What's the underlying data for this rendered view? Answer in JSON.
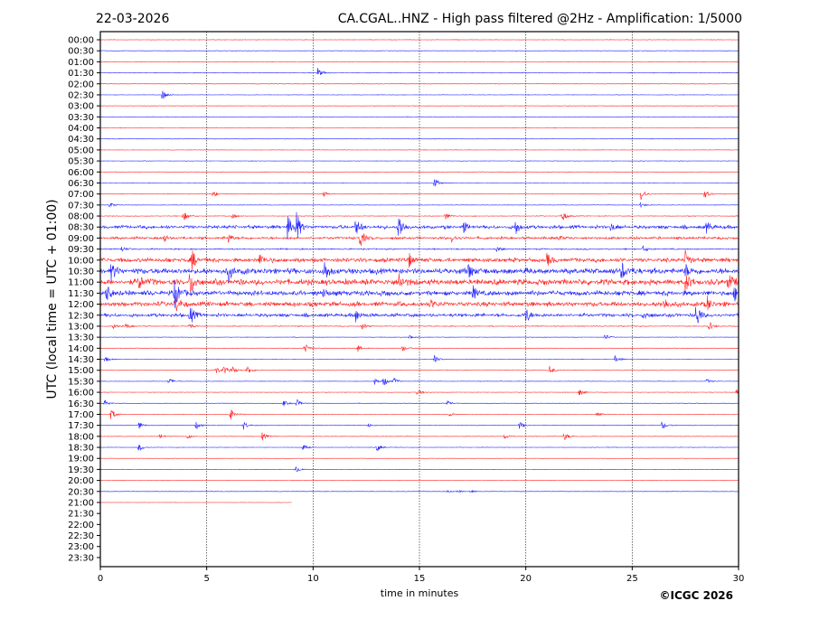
{
  "header": {
    "date": "22-03-2026",
    "title": "CA.CGAL..HNZ - High pass filtered @2Hz - Amplification: 1/5000"
  },
  "footer": {
    "copyright": "©ICGC 2026"
  },
  "chart_data": {
    "type": "line",
    "xlabel": "time in minutes",
    "ylabel": "UTC (local time = UTC + 01:00)",
    "xlim": [
      0,
      30
    ],
    "xticks": [
      "0",
      "5",
      "10",
      "15",
      "20",
      "25",
      "30"
    ],
    "grid": "vertical dotted every 5 minutes",
    "colors": {
      "hour": "#ff0000",
      "half_hour": "#0000ff"
    },
    "data_end": {
      "row": "21:00",
      "minute": 9
    },
    "rows": [
      {
        "label": "00:00",
        "noise": 0.3,
        "events": []
      },
      {
        "label": "00:30",
        "noise": 0.3,
        "events": []
      },
      {
        "label": "01:00",
        "noise": 0.3,
        "events": []
      },
      {
        "label": "01:30",
        "noise": 0.4,
        "events": [
          [
            10.2,
            6
          ]
        ]
      },
      {
        "label": "02:00",
        "noise": 0.3,
        "events": []
      },
      {
        "label": "02:30",
        "noise": 0.3,
        "events": [
          [
            2.9,
            6
          ]
        ]
      },
      {
        "label": "03:00",
        "noise": 0.3,
        "events": []
      },
      {
        "label": "03:30",
        "noise": 0.3,
        "events": []
      },
      {
        "label": "04:00",
        "noise": 0.3,
        "events": []
      },
      {
        "label": "04:30",
        "noise": 0.3,
        "events": []
      },
      {
        "label": "05:00",
        "noise": 0.3,
        "events": []
      },
      {
        "label": "05:30",
        "noise": 0.3,
        "events": []
      },
      {
        "label": "06:00",
        "noise": 0.3,
        "events": []
      },
      {
        "label": "06:30",
        "noise": 0.3,
        "events": [
          [
            15.7,
            6
          ]
        ]
      },
      {
        "label": "07:00",
        "noise": 0.3,
        "events": [
          [
            5.3,
            4
          ],
          [
            10.5,
            3
          ],
          [
            25.4,
            8
          ],
          [
            28.4,
            5
          ]
        ]
      },
      {
        "label": "07:30",
        "noise": 0.3,
        "events": [
          [
            0.4,
            4
          ],
          [
            25.4,
            3
          ]
        ]
      },
      {
        "label": "08:00",
        "noise": 0.4,
        "events": [
          [
            3.9,
            6
          ],
          [
            6.2,
            3
          ],
          [
            16.2,
            5
          ],
          [
            21.7,
            7
          ]
        ]
      },
      {
        "label": "08:30",
        "noise": 2,
        "events": [
          [
            8.8,
            14
          ],
          [
            9.2,
            18
          ],
          [
            12,
            10
          ],
          [
            14,
            18
          ],
          [
            17,
            8
          ],
          [
            19.5,
            10
          ],
          [
            28.5,
            7
          ],
          [
            24,
            5
          ]
        ]
      },
      {
        "label": "09:00",
        "noise": 1.5,
        "events": [
          [
            3,
            4
          ],
          [
            6,
            6
          ],
          [
            12.2,
            12
          ],
          [
            16.5,
            5
          ],
          [
            21.5,
            4
          ]
        ]
      },
      {
        "label": "09:30",
        "noise": 0.8,
        "events": [
          [
            1,
            3
          ],
          [
            18.6,
            4
          ],
          [
            25.5,
            4
          ]
        ]
      },
      {
        "label": "10:00",
        "noise": 2.5,
        "events": [
          [
            4.3,
            12
          ],
          [
            7.5,
            8
          ],
          [
            14.5,
            8
          ],
          [
            21,
            8
          ],
          [
            27.5,
            10
          ]
        ]
      },
      {
        "label": "10:30",
        "noise": 3.5,
        "events": [
          [
            0.5,
            10
          ],
          [
            6,
            12
          ],
          [
            10.5,
            14
          ],
          [
            17.3,
            10
          ],
          [
            24.5,
            12
          ],
          [
            27.5,
            8
          ]
        ]
      },
      {
        "label": "11:00",
        "noise": 3.5,
        "events": [
          [
            1.8,
            10
          ],
          [
            4.2,
            16
          ],
          [
            14,
            14
          ],
          [
            27.5,
            12
          ],
          [
            29.5,
            10
          ]
        ]
      },
      {
        "label": "11:30",
        "noise": 3,
        "events": [
          [
            0.3,
            10
          ],
          [
            3.5,
            18
          ],
          [
            10.5,
            6
          ],
          [
            17.5,
            8
          ],
          [
            29.8,
            8
          ]
        ]
      },
      {
        "label": "12:00",
        "noise": 2.8,
        "events": [
          [
            3.5,
            12
          ],
          [
            15.5,
            6
          ],
          [
            26.5,
            8
          ],
          [
            28.5,
            10
          ]
        ]
      },
      {
        "label": "12:30",
        "noise": 2,
        "events": [
          [
            4.2,
            12
          ],
          [
            12,
            8
          ],
          [
            20,
            10
          ],
          [
            25.5,
            6
          ],
          [
            28,
            16
          ]
        ]
      },
      {
        "label": "13:00",
        "noise": 0.5,
        "events": [
          [
            0.6,
            3
          ],
          [
            1.2,
            3
          ],
          [
            4.2,
            4
          ],
          [
            12.3,
            4
          ],
          [
            28.6,
            6
          ]
        ]
      },
      {
        "label": "13:30",
        "noise": 0.3,
        "events": [
          [
            14.5,
            3
          ],
          [
            23.7,
            4
          ]
        ]
      },
      {
        "label": "14:00",
        "noise": 0.3,
        "events": [
          [
            9.6,
            6
          ],
          [
            12.1,
            4
          ],
          [
            14.2,
            4
          ]
        ]
      },
      {
        "label": "14:30",
        "noise": 0.3,
        "events": [
          [
            0.2,
            4
          ],
          [
            15.7,
            4
          ],
          [
            24.2,
            4
          ]
        ]
      },
      {
        "label": "15:00",
        "noise": 0.3,
        "events": [
          [
            5.4,
            5
          ],
          [
            5.8,
            5
          ],
          [
            6.2,
            4
          ],
          [
            6.9,
            4
          ],
          [
            21.1,
            6
          ]
        ]
      },
      {
        "label": "15:30",
        "noise": 0.3,
        "events": [
          [
            3.2,
            4
          ],
          [
            12.9,
            4
          ],
          [
            13.3,
            6
          ],
          [
            13.8,
            4
          ],
          [
            28.5,
            3
          ]
        ]
      },
      {
        "label": "16:00",
        "noise": 0.3,
        "events": [
          [
            14.9,
            4
          ],
          [
            22.5,
            4
          ],
          [
            29.9,
            4
          ]
        ]
      },
      {
        "label": "16:30",
        "noise": 0.3,
        "events": [
          [
            0.2,
            4
          ],
          [
            8.6,
            4
          ],
          [
            9.2,
            5
          ],
          [
            16.3,
            4
          ]
        ]
      },
      {
        "label": "17:00",
        "noise": 0.3,
        "events": [
          [
            0.5,
            7
          ],
          [
            6.1,
            7
          ],
          [
            16.4,
            2
          ],
          [
            23.3,
            4
          ]
        ]
      },
      {
        "label": "17:30",
        "noise": 0.3,
        "events": [
          [
            1.8,
            5
          ],
          [
            4.5,
            5
          ],
          [
            6.7,
            6
          ],
          [
            12.6,
            2
          ],
          [
            19.7,
            5
          ],
          [
            26.4,
            5
          ]
        ]
      },
      {
        "label": "18:00",
        "noise": 0.3,
        "events": [
          [
            2.8,
            3
          ],
          [
            4.1,
            3
          ],
          [
            7.6,
            5
          ],
          [
            19,
            3
          ],
          [
            21.8,
            5
          ]
        ]
      },
      {
        "label": "18:30",
        "noise": 0.3,
        "events": [
          [
            1.8,
            5
          ],
          [
            9.5,
            4
          ],
          [
            13,
            5
          ]
        ]
      },
      {
        "label": "19:00",
        "noise": 0.2,
        "events": []
      },
      {
        "label": "19:30",
        "noise": 0.2,
        "events": [
          [
            9.2,
            5
          ]
        ]
      },
      {
        "label": "20:00",
        "noise": 0.2,
        "events": []
      },
      {
        "label": "20:30",
        "noise": 0.3,
        "events": [
          [
            16.3,
            1.5
          ],
          [
            16.8,
            1.5
          ],
          [
            17.4,
            2
          ]
        ]
      },
      {
        "label": "21:00",
        "noise": 0.2,
        "events": []
      },
      {
        "label": "21:30",
        "noise": 0,
        "events": []
      },
      {
        "label": "22:00",
        "noise": 0,
        "events": []
      },
      {
        "label": "22:30",
        "noise": 0,
        "events": []
      },
      {
        "label": "23:00",
        "noise": 0,
        "events": []
      },
      {
        "label": "23:30",
        "noise": 0,
        "events": []
      }
    ]
  }
}
